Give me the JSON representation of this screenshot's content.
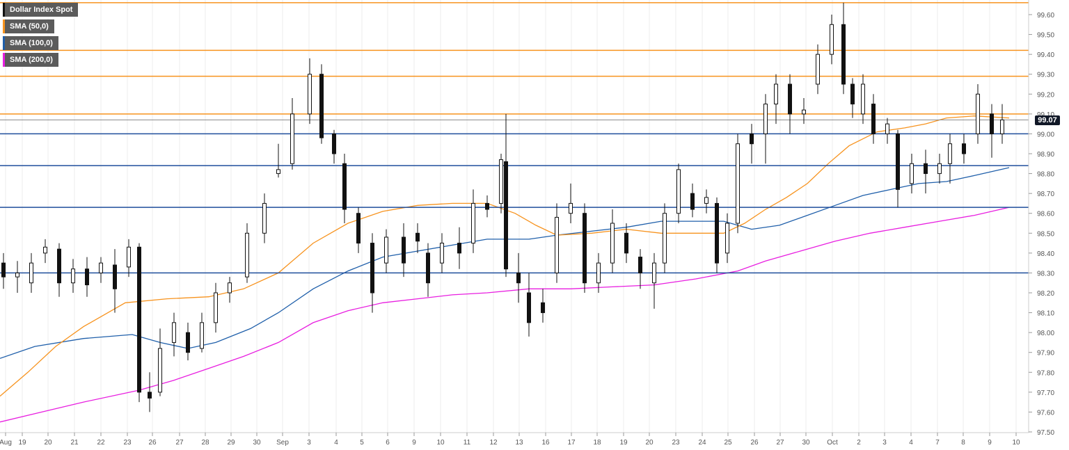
{
  "chart_data": {
    "type": "candlestick",
    "legend": [
      {
        "label": "Dollar Index Spot",
        "color": "#111111"
      },
      {
        "label": "SMA (50,0)",
        "color": "#f7931e"
      },
      {
        "label": "SMA (100,0)",
        "color": "#1f5faa"
      },
      {
        "label": "SMA (200,0)",
        "color": "#e81ee0"
      }
    ],
    "last_price": "99.07",
    "ylim": [
      97.5,
      99.67
    ],
    "y_ticks": [
      "97.50",
      "97.60",
      "97.70",
      "97.80",
      "97.90",
      "98.00",
      "98.10",
      "98.20",
      "98.30",
      "98.40",
      "98.50",
      "98.60",
      "98.70",
      "98.80",
      "98.90",
      "99.00",
      "99.10",
      "99.20",
      "99.30",
      "99.40",
      "99.50",
      "99.60"
    ],
    "x_ticks": [
      "Aug",
      "19",
      "20",
      "21",
      "22",
      "23",
      "26",
      "27",
      "28",
      "29",
      "30",
      "Sep",
      "3",
      "4",
      "5",
      "6",
      "9",
      "10",
      "11",
      "12",
      "13",
      "16",
      "17",
      "18",
      "19",
      "20",
      "23",
      "24",
      "25",
      "26",
      "27",
      "30",
      "Oct",
      "2",
      "3",
      "4",
      "7",
      "8",
      "9",
      "10"
    ],
    "resistance_levels": [
      99.66,
      99.42,
      99.29,
      99.1
    ],
    "support_levels": [
      99.0,
      98.84,
      98.63,
      98.3
    ],
    "last_price_level": 99.07,
    "sma50": [
      [
        0,
        97.68
      ],
      [
        40,
        97.8
      ],
      [
        80,
        97.93
      ],
      [
        120,
        98.03
      ],
      [
        180,
        98.15
      ],
      [
        240,
        98.17
      ],
      [
        300,
        98.18
      ],
      [
        350,
        98.22
      ],
      [
        400,
        98.3
      ],
      [
        450,
        98.45
      ],
      [
        500,
        98.55
      ],
      [
        550,
        98.61
      ],
      [
        600,
        98.64
      ],
      [
        650,
        98.65
      ],
      [
        700,
        98.65
      ],
      [
        740,
        98.6
      ],
      [
        770,
        98.54
      ],
      [
        800,
        98.49
      ],
      [
        850,
        98.5
      ],
      [
        900,
        98.52
      ],
      [
        950,
        98.5
      ],
      [
        1000,
        98.5
      ],
      [
        1040,
        98.5
      ],
      [
        1070,
        98.55
      ],
      [
        1100,
        98.62
      ],
      [
        1130,
        98.68
      ],
      [
        1160,
        98.75
      ],
      [
        1190,
        98.85
      ],
      [
        1220,
        98.94
      ],
      [
        1260,
        99.01
      ],
      [
        1300,
        99.03
      ],
      [
        1330,
        99.05
      ],
      [
        1360,
        99.08
      ],
      [
        1400,
        99.09
      ],
      [
        1450,
        99.08
      ]
    ],
    "sma100": [
      [
        0,
        97.87
      ],
      [
        50,
        97.93
      ],
      [
        120,
        97.97
      ],
      [
        190,
        97.99
      ],
      [
        230,
        97.95
      ],
      [
        270,
        97.92
      ],
      [
        310,
        97.95
      ],
      [
        360,
        98.02
      ],
      [
        400,
        98.1
      ],
      [
        450,
        98.22
      ],
      [
        500,
        98.31
      ],
      [
        550,
        98.38
      ],
      [
        600,
        98.41
      ],
      [
        650,
        98.44
      ],
      [
        700,
        98.47
      ],
      [
        760,
        98.47
      ],
      [
        800,
        98.49
      ],
      [
        850,
        98.51
      ],
      [
        900,
        98.53
      ],
      [
        950,
        98.56
      ],
      [
        1000,
        98.56
      ],
      [
        1040,
        98.56
      ],
      [
        1080,
        98.52
      ],
      [
        1120,
        98.54
      ],
      [
        1160,
        98.59
      ],
      [
        1200,
        98.64
      ],
      [
        1240,
        98.69
      ],
      [
        1280,
        98.72
      ],
      [
        1320,
        98.75
      ],
      [
        1360,
        98.76
      ],
      [
        1400,
        98.79
      ],
      [
        1450,
        98.83
      ]
    ],
    "sma200": [
      [
        0,
        97.55
      ],
      [
        60,
        97.6
      ],
      [
        120,
        97.65
      ],
      [
        200,
        97.71
      ],
      [
        250,
        97.76
      ],
      [
        300,
        97.82
      ],
      [
        350,
        97.88
      ],
      [
        400,
        97.95
      ],
      [
        450,
        98.05
      ],
      [
        500,
        98.11
      ],
      [
        550,
        98.15
      ],
      [
        600,
        98.17
      ],
      [
        650,
        98.19
      ],
      [
        700,
        98.2
      ],
      [
        760,
        98.22
      ],
      [
        820,
        98.22
      ],
      [
        880,
        98.23
      ],
      [
        940,
        98.24
      ],
      [
        1000,
        98.27
      ],
      [
        1060,
        98.31
      ],
      [
        1100,
        98.36
      ],
      [
        1150,
        98.41
      ],
      [
        1200,
        98.46
      ],
      [
        1250,
        98.5
      ],
      [
        1300,
        98.53
      ],
      [
        1350,
        98.56
      ],
      [
        1400,
        98.59
      ],
      [
        1450,
        98.63
      ]
    ],
    "candles_sampled": [
      [
        5,
        98.35,
        98.28,
        98.4,
        98.22
      ],
      [
        25,
        98.28,
        98.3,
        98.36,
        98.2
      ],
      [
        45,
        98.25,
        98.35,
        98.4,
        98.2
      ],
      [
        65,
        98.4,
        98.43,
        98.47,
        98.35
      ],
      [
        85,
        98.42,
        98.25,
        98.45,
        98.18
      ],
      [
        105,
        98.25,
        98.32,
        98.37,
        98.2
      ],
      [
        125,
        98.32,
        98.24,
        98.38,
        98.18
      ],
      [
        145,
        98.3,
        98.35,
        98.38,
        98.25
      ],
      [
        165,
        98.34,
        98.22,
        98.42,
        98.1
      ],
      [
        185,
        98.33,
        98.43,
        98.47,
        98.28
      ],
      [
        200,
        98.43,
        97.7,
        98.45,
        97.65
      ],
      [
        215,
        97.7,
        97.67,
        97.8,
        97.6
      ],
      [
        230,
        97.7,
        97.92,
        98.02,
        97.68
      ],
      [
        250,
        97.95,
        98.05,
        98.1,
        97.88
      ],
      [
        270,
        98.0,
        97.9,
        98.05,
        97.86
      ],
      [
        290,
        97.92,
        98.05,
        98.1,
        97.9
      ],
      [
        310,
        98.05,
        98.2,
        98.25,
        98.0
      ],
      [
        330,
        98.2,
        98.25,
        98.28,
        98.15
      ],
      [
        355,
        98.28,
        98.5,
        98.55,
        98.25
      ],
      [
        380,
        98.5,
        98.65,
        98.7,
        98.45
      ],
      [
        400,
        98.8,
        98.82,
        98.95,
        98.78
      ],
      [
        420,
        98.85,
        99.1,
        99.18,
        98.82
      ],
      [
        445,
        99.1,
        99.3,
        99.38,
        99.05
      ],
      [
        462,
        99.3,
        98.98,
        99.35,
        98.95
      ],
      [
        480,
        99.0,
        98.9,
        99.02,
        98.85
      ],
      [
        495,
        98.85,
        98.62,
        98.9,
        98.55
      ],
      [
        515,
        98.6,
        98.45,
        98.63,
        98.4
      ],
      [
        535,
        98.45,
        98.2,
        98.5,
        98.1
      ],
      [
        555,
        98.35,
        98.48,
        98.52,
        98.3
      ],
      [
        580,
        98.48,
        98.35,
        98.55,
        98.28
      ],
      [
        600,
        98.5,
        98.46,
        98.55,
        98.4
      ],
      [
        615,
        98.4,
        98.25,
        98.45,
        98.18
      ],
      [
        635,
        98.35,
        98.45,
        98.5,
        98.3
      ],
      [
        660,
        98.45,
        98.4,
        98.53,
        98.32
      ],
      [
        680,
        98.45,
        98.65,
        98.72,
        98.4
      ],
      [
        700,
        98.65,
        98.62,
        98.69,
        98.58
      ],
      [
        720,
        98.65,
        98.87,
        98.9,
        98.6
      ],
      [
        727,
        98.86,
        98.32,
        99.1,
        98.28
      ],
      [
        745,
        98.3,
        98.25,
        98.4,
        98.15
      ],
      [
        760,
        98.2,
        98.05,
        98.3,
        97.98
      ],
      [
        780,
        98.15,
        98.1,
        98.22,
        98.05
      ],
      [
        800,
        98.3,
        98.58,
        98.65,
        98.25
      ],
      [
        820,
        98.6,
        98.65,
        98.75,
        98.55
      ],
      [
        840,
        98.6,
        98.25,
        98.65,
        98.2
      ],
      [
        860,
        98.25,
        98.35,
        98.4,
        98.2
      ],
      [
        880,
        98.35,
        98.55,
        98.62,
        98.3
      ],
      [
        900,
        98.5,
        98.4,
        98.55,
        98.35
      ],
      [
        920,
        98.38,
        98.3,
        98.42,
        98.22
      ],
      [
        940,
        98.25,
        98.35,
        98.4,
        98.12
      ],
      [
        955,
        98.35,
        98.6,
        98.65,
        98.3
      ],
      [
        975,
        98.6,
        98.82,
        98.85,
        98.55
      ],
      [
        995,
        98.7,
        98.62,
        98.75,
        98.58
      ],
      [
        1015,
        98.65,
        98.68,
        98.72,
        98.6
      ],
      [
        1030,
        98.65,
        98.35,
        98.68,
        98.3
      ],
      [
        1045,
        98.4,
        98.55,
        98.6,
        98.35
      ],
      [
        1060,
        98.55,
        98.95,
        99.0,
        98.5
      ],
      [
        1080,
        99.0,
        98.95,
        99.05,
        98.85
      ],
      [
        1100,
        99.0,
        99.15,
        99.2,
        98.85
      ],
      [
        1115,
        99.15,
        99.25,
        99.3,
        99.05
      ],
      [
        1135,
        99.25,
        99.1,
        99.3,
        99.0
      ],
      [
        1155,
        99.1,
        99.12,
        99.18,
        99.05
      ],
      [
        1175,
        99.25,
        99.4,
        99.45,
        99.2
      ],
      [
        1195,
        99.4,
        99.55,
        99.6,
        99.35
      ],
      [
        1212,
        99.55,
        99.25,
        99.66,
        99.2
      ],
      [
        1225,
        99.25,
        99.15,
        99.28,
        99.08
      ],
      [
        1240,
        99.1,
        99.25,
        99.3,
        99.05
      ],
      [
        1255,
        99.15,
        99.0,
        99.2,
        98.95
      ],
      [
        1275,
        99.0,
        99.05,
        99.08,
        98.95
      ],
      [
        1290,
        99.0,
        98.72,
        99.02,
        98.63
      ],
      [
        1310,
        98.75,
        98.85,
        98.9,
        98.7
      ],
      [
        1330,
        98.85,
        98.8,
        98.92,
        98.7
      ],
      [
        1350,
        98.8,
        98.85,
        98.9,
        98.75
      ],
      [
        1365,
        98.85,
        98.95,
        99.0,
        98.75
      ],
      [
        1385,
        98.95,
        98.9,
        99.0,
        98.85
      ],
      [
        1405,
        99.0,
        99.2,
        99.25,
        98.95
      ],
      [
        1425,
        99.1,
        99.0,
        99.15,
        98.88
      ],
      [
        1440,
        99.0,
        99.07,
        99.15,
        98.95
      ]
    ]
  }
}
